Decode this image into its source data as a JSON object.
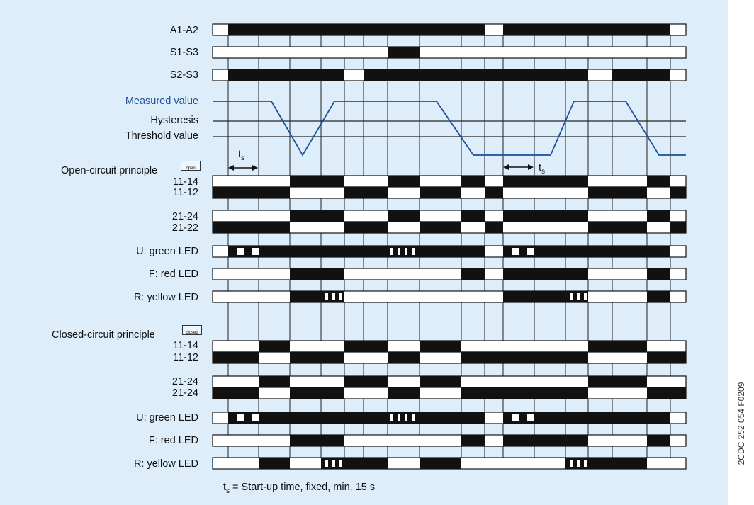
{
  "signals_top": [
    {
      "id": "a1a2",
      "label": "A1-A2"
    },
    {
      "id": "s1s3",
      "label": "S1-S3"
    },
    {
      "id": "s2s3",
      "label": "S2-S3"
    }
  ],
  "measure": {
    "measured_label": "Measured value",
    "hysteresis_label": "Hysteresis",
    "threshold_label": "Threshold value",
    "line_color": "#1c4f9c"
  },
  "ts_symbol": "t",
  "ts_sub": "s",
  "open_circuit": {
    "title": "Open-circuit principle",
    "badge": "open",
    "rows": [
      {
        "a": "11-14",
        "b": "11-12"
      },
      {
        "a": "21-24",
        "b": "21-22"
      },
      {
        "label": "U: green LED"
      },
      {
        "label": "F: red LED"
      },
      {
        "label": "R: yellow LED"
      }
    ]
  },
  "closed_circuit": {
    "title": "Closed-circuit principle",
    "badge": "closed",
    "rows": [
      {
        "a": "11-14",
        "b": "11-12"
      },
      {
        "a": "21-24",
        "b": "21-24"
      },
      {
        "label": "U: green LED"
      },
      {
        "label": "F: red LED"
      },
      {
        "label": "R: yellow LED"
      }
    ]
  },
  "footnote": {
    "t": "t",
    "sub": "s",
    "text": " = Start-up time, fixed, min. 15 s"
  },
  "doc_id": "2CDC 252 054 F0209",
  "colors": {
    "background": "#ddeefa",
    "bar_fill": "#111111",
    "bar_empty": "#ffffff"
  }
}
